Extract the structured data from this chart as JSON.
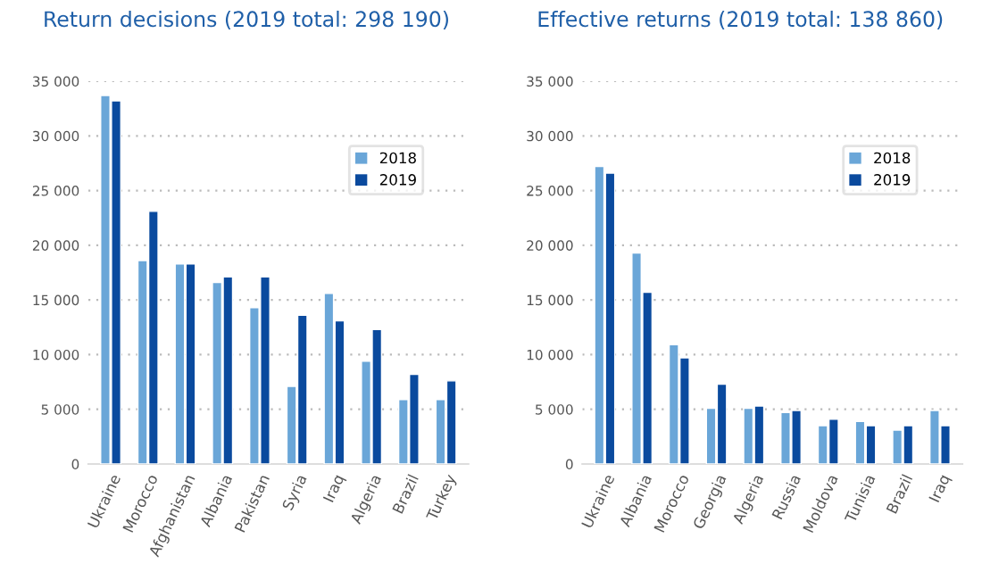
{
  "chart_data": [
    {
      "type": "bar",
      "title": "Return decisions (2019 total: 298 190)",
      "categories": [
        "Ukraine",
        "Morocco",
        "Afghanistan",
        "Albania",
        "Pakistan",
        "Syria",
        "Iraq",
        "Algeria",
        "Brazil",
        "Turkey"
      ],
      "series": [
        {
          "name": "2018",
          "color": "#6aa6d8",
          "values": [
            33700,
            18600,
            18300,
            16600,
            14300,
            7100,
            15600,
            9400,
            5900,
            5900
          ]
        },
        {
          "name": "2019",
          "color": "#0a4a9e",
          "values": [
            33200,
            23100,
            18300,
            17100,
            17100,
            13600,
            13100,
            12300,
            8200,
            7600
          ]
        }
      ],
      "ylim": [
        0,
        35000
      ],
      "yticks": [
        {
          "value": 0,
          "label": "0"
        },
        {
          "value": 5000,
          "label": "5 000"
        },
        {
          "value": 10000,
          "label": "10 000"
        },
        {
          "value": 15000,
          "label": "15 000"
        },
        {
          "value": 20000,
          "label": "20 000"
        },
        {
          "value": 25000,
          "label": "25 000"
        },
        {
          "value": 30000,
          "label": "30 000"
        },
        {
          "value": 35000,
          "label": "35 000"
        }
      ],
      "grid": "y",
      "legend": "top right"
    },
    {
      "type": "bar",
      "title": "Effective returns (2019 total: 138 860)",
      "categories": [
        "Ukraine",
        "Albania",
        "Morocco",
        "Georgia",
        "Algeria",
        "Russia",
        "Moldova",
        "Tunisia",
        "Brazil",
        "Iraq"
      ],
      "series": [
        {
          "name": "2018",
          "color": "#6aa6d8",
          "values": [
            27200,
            19300,
            10900,
            5100,
            5100,
            4700,
            3500,
            3900,
            3100,
            4900
          ]
        },
        {
          "name": "2019",
          "color": "#0a4a9e",
          "values": [
            26600,
            15700,
            9700,
            7300,
            5300,
            4900,
            4100,
            3500,
            3500,
            3500
          ]
        }
      ],
      "ylim": [
        0,
        35000
      ],
      "yticks": [
        {
          "value": 0,
          "label": "0"
        },
        {
          "value": 5000,
          "label": "5 000"
        },
        {
          "value": 10000,
          "label": "10 000"
        },
        {
          "value": 15000,
          "label": "15 000"
        },
        {
          "value": 20000,
          "label": "20 000"
        },
        {
          "value": 25000,
          "label": "25 000"
        },
        {
          "value": 30000,
          "label": "30 000"
        },
        {
          "value": 35000,
          "label": "35 000"
        }
      ],
      "grid": "y",
      "legend": "top right"
    }
  ]
}
